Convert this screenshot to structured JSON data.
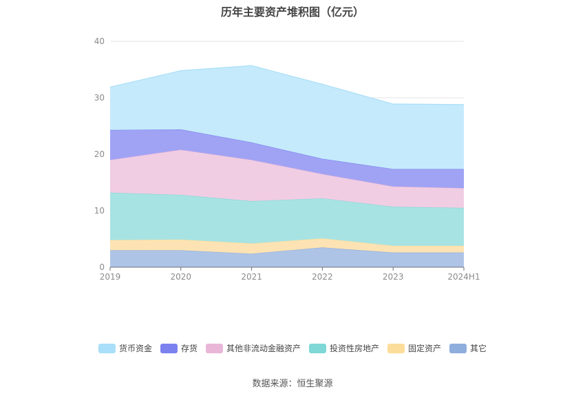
{
  "chart_data": {
    "type": "area",
    "stacked": true,
    "title": "历年主要资产堆积图（亿元）",
    "categories": [
      "2019",
      "2020",
      "2021",
      "2022",
      "2023",
      "2024H1"
    ],
    "ylim": [
      0,
      40
    ],
    "yticks": [
      "0",
      "10",
      "20",
      "30",
      "40"
    ],
    "grid": true,
    "legend_position": "bottom",
    "series": [
      {
        "name": "其它",
        "color": "#8eaedd",
        "fill": "#aec4e6",
        "values": [
          3.0,
          3.0,
          2.4,
          3.5,
          2.6,
          2.6
        ]
      },
      {
        "name": "固定资产",
        "color": "#fddd9a",
        "fill": "#fde3b3",
        "values": [
          1.8,
          1.9,
          1.8,
          1.6,
          1.2,
          1.2
        ]
      },
      {
        "name": "投资性房地产",
        "color": "#7fd8d6",
        "fill": "#a8e3e3",
        "values": [
          8.4,
          7.9,
          7.5,
          7.1,
          6.9,
          6.7
        ]
      },
      {
        "name": "其他非流动金融资产",
        "color": "#e9b6d8",
        "fill": "#f0cde3",
        "values": [
          5.8,
          8.0,
          7.3,
          4.3,
          3.6,
          3.5
        ]
      },
      {
        "name": "存货",
        "color": "#7b82f0",
        "fill": "#a0a3f4",
        "values": [
          5.3,
          3.6,
          3.1,
          2.7,
          3.1,
          3.4
        ]
      },
      {
        "name": "货币资金",
        "color": "#a9dff8",
        "fill": "#c5eafb",
        "values": [
          7.6,
          10.4,
          13.6,
          13.2,
          11.5,
          11.4
        ]
      }
    ]
  },
  "legend": [
    {
      "label": "货币资金",
      "color": "#a9dff8"
    },
    {
      "label": "存货",
      "color": "#7b82f0"
    },
    {
      "label": "其他非流动金融资产",
      "color": "#e9b6d8"
    },
    {
      "label": "投资性房地产",
      "color": "#7fd8d6"
    },
    {
      "label": "固定资产",
      "color": "#fddd9a"
    },
    {
      "label": "其它",
      "color": "#8eaedd"
    }
  ],
  "source": "数据来源：恒生聚源"
}
